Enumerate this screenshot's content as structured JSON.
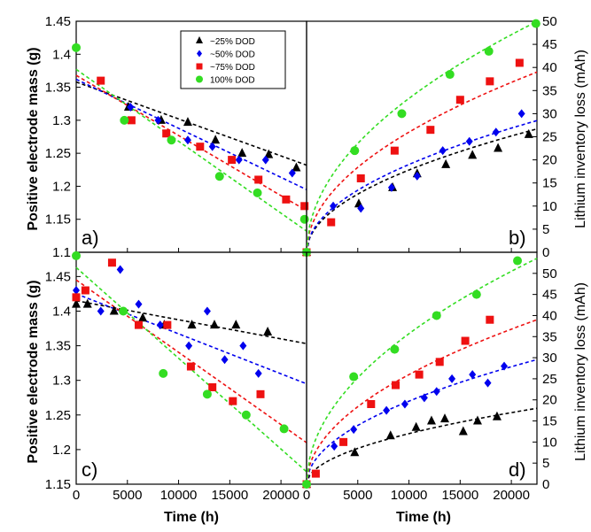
{
  "figure": {
    "left_ylabel": "Positive electrode mass (g)",
    "right_ylabel": "Lithium inventory loss (mAh)",
    "xlabel": "Time (h)"
  },
  "legend": [
    {
      "key": "s25",
      "label": "~25% DOD",
      "marker": "triangle",
      "color": "#000000"
    },
    {
      "key": "s50",
      "label": "~50% DOD",
      "marker": "diamond",
      "color": "#0000ee"
    },
    {
      "key": "s75",
      "label": "~75% DOD",
      "marker": "square",
      "color": "#ee1111"
    },
    {
      "key": "s100",
      "label": "100% DOD",
      "marker": "circle",
      "color": "#33dd22"
    }
  ],
  "chart_data": [
    {
      "panel": "a)",
      "type": "scatter",
      "xlim": [
        0,
        22500
      ],
      "ylim": [
        1.1,
        1.45
      ],
      "xticks": [
        0,
        5000,
        10000,
        15000,
        20000
      ],
      "yticks": [
        1.1,
        1.15,
        1.2,
        1.25,
        1.3,
        1.35,
        1.4,
        1.45
      ],
      "ytick_labels": [
        "1.1",
        "1.15",
        "1.2",
        "1.25",
        "1.3",
        "1.35",
        "1.4",
        "1.45"
      ],
      "series": [
        {
          "key": "s25",
          "x": [
            5100,
            8300,
            10900,
            13600,
            16200,
            18800,
            21500
          ],
          "y": [
            1.32,
            1.3,
            1.297,
            1.27,
            1.25,
            1.248,
            1.228
          ]
        },
        {
          "key": "s50",
          "x": [
            5300,
            8000,
            10900,
            13300,
            15900,
            18500,
            21100
          ],
          "y": [
            1.32,
            1.3,
            1.27,
            1.26,
            1.24,
            1.24,
            1.22
          ]
        },
        {
          "key": "s75",
          "x": [
            2400,
            5400,
            8800,
            12100,
            15200,
            17800,
            20500,
            22300
          ],
          "y": [
            1.36,
            1.3,
            1.28,
            1.26,
            1.24,
            1.21,
            1.18,
            1.17
          ]
        },
        {
          "key": "s100",
          "x": [
            0,
            4700,
            9300,
            14000,
            17700,
            22300
          ],
          "y": [
            1.41,
            1.3,
            1.27,
            1.215,
            1.19,
            1.15
          ]
        }
      ],
      "fits": [
        {
          "key": "s25",
          "x": [
            0,
            22500
          ],
          "y": [
            1.358,
            1.232
          ]
        },
        {
          "key": "s50",
          "x": [
            0,
            22500
          ],
          "y": [
            1.362,
            1.195
          ]
        },
        {
          "key": "s75",
          "x": [
            0,
            22500
          ],
          "y": [
            1.368,
            1.163
          ]
        },
        {
          "key": "s100",
          "x": [
            0,
            22500
          ],
          "y": [
            1.377,
            1.132
          ]
        }
      ]
    },
    {
      "panel": "b)",
      "type": "scatter",
      "xlim": [
        0,
        22500
      ],
      "ylim": [
        0,
        50
      ],
      "xticks": [
        0,
        5000,
        10000,
        15000,
        20000
      ],
      "yticks": [
        0,
        5,
        10,
        15,
        20,
        25,
        30,
        35,
        40,
        45,
        50
      ],
      "ytick_labels": [
        "0",
        "5",
        "10",
        "15",
        "20",
        "25",
        "30",
        "35",
        "40",
        "45",
        "50"
      ],
      "series": [
        {
          "key": "s25",
          "x": [
            0,
            5100,
            8400,
            10800,
            13600,
            16200,
            18700,
            21700
          ],
          "y": [
            0,
            10.5,
            14,
            17,
            19,
            21,
            22.5,
            25.5
          ]
        },
        {
          "key": "s50",
          "x": [
            0,
            2600,
            5300,
            8300,
            10800,
            13300,
            15900,
            18500,
            21000
          ],
          "y": [
            0,
            10,
            9.5,
            14,
            16.5,
            22,
            24,
            26,
            30
          ]
        },
        {
          "key": "s75",
          "x": [
            0,
            2400,
            5300,
            8600,
            12100,
            15000,
            17900,
            20800
          ],
          "y": [
            0,
            6.5,
            16,
            22,
            26.5,
            33,
            37,
            41
          ]
        },
        {
          "key": "s100",
          "x": [
            0,
            4700,
            9300,
            14000,
            17800,
            22400
          ],
          "y": [
            0,
            22,
            30,
            38.5,
            43.5,
            49.5
          ]
        }
      ],
      "fits": [
        {
          "key": "s25",
          "k": 0.178
        },
        {
          "key": "s50",
          "k": 0.19
        },
        {
          "key": "s75",
          "k": 0.26
        },
        {
          "key": "s100",
          "k": 0.333
        }
      ]
    },
    {
      "panel": "c)",
      "type": "scatter",
      "xlim": [
        0,
        22500
      ],
      "ylim": [
        1.15,
        1.485
      ],
      "xticks": [
        0,
        5000,
        10000,
        15000,
        20000
      ],
      "yticks": [
        1.15,
        1.2,
        1.25,
        1.3,
        1.35,
        1.4,
        1.45
      ],
      "ytick_labels": [
        "1.15",
        "1.2",
        "1.25",
        "1.3",
        "1.35",
        "1.4",
        "1.45"
      ],
      "series": [
        {
          "key": "s25",
          "x": [
            0,
            1100,
            3700,
            6500,
            8600,
            11300,
            13500,
            15600,
            18700
          ],
          "y": [
            1.41,
            1.41,
            1.4,
            1.39,
            1.38,
            1.38,
            1.38,
            1.38,
            1.37
          ]
        },
        {
          "key": "s50",
          "x": [
            0,
            2400,
            4300,
            6100,
            8200,
            11000,
            12800,
            14500,
            16300,
            17800
          ],
          "y": [
            1.43,
            1.4,
            1.46,
            1.41,
            1.38,
            1.35,
            1.4,
            1.33,
            1.35,
            1.31
          ]
        },
        {
          "key": "s75",
          "x": [
            0,
            900,
            3500,
            6100,
            8900,
            11200,
            13300,
            15300,
            18000
          ],
          "y": [
            1.42,
            1.43,
            1.47,
            1.38,
            1.38,
            1.32,
            1.29,
            1.27,
            1.28
          ]
        },
        {
          "key": "s100",
          "x": [
            0,
            4600,
            8500,
            12800,
            16600,
            20300
          ],
          "y": [
            1.48,
            1.4,
            1.31,
            1.28,
            1.25,
            1.23
          ]
        }
      ],
      "fits": [
        {
          "key": "s25",
          "x": [
            0,
            22500
          ],
          "y": [
            1.415,
            1.353
          ]
        },
        {
          "key": "s50",
          "x": [
            0,
            22500
          ],
          "y": [
            1.425,
            1.295
          ]
        },
        {
          "key": "s75",
          "x": [
            0,
            22500
          ],
          "y": [
            1.445,
            1.21
          ]
        },
        {
          "key": "s100",
          "x": [
            0,
            22500
          ],
          "y": [
            1.463,
            1.168
          ]
        }
      ]
    },
    {
      "panel": "d)",
      "type": "scatter",
      "xlim": [
        0,
        22500
      ],
      "ylim": [
        0,
        55
      ],
      "xticks": [
        0,
        5000,
        10000,
        15000,
        20000
      ],
      "yticks": [
        0,
        5,
        10,
        15,
        20,
        25,
        30,
        35,
        40,
        45,
        50
      ],
      "ytick_labels": [
        "0",
        "5",
        "10",
        "15",
        "20",
        "25",
        "30",
        "35",
        "40",
        "45",
        "50"
      ],
      "series": [
        {
          "key": "s25",
          "x": [
            0,
            4700,
            8200,
            10700,
            12200,
            13500,
            15300,
            16700,
            18600
          ],
          "y": [
            0,
            7.5,
            11.5,
            13.5,
            15,
            15.5,
            12.5,
            15,
            16
          ]
        },
        {
          "key": "s50",
          "x": [
            0,
            2700,
            4600,
            7800,
            9600,
            11500,
            12700,
            14200,
            16200,
            17700,
            19300
          ],
          "y": [
            0,
            9,
            13,
            17.5,
            19,
            20.5,
            22,
            25,
            26,
            24,
            28
          ]
        },
        {
          "key": "s75",
          "x": [
            0,
            900,
            3600,
            6300,
            8700,
            11000,
            13000,
            15500,
            17900
          ],
          "y": [
            0,
            2.5,
            10,
            19,
            23.5,
            26,
            29,
            34,
            39
          ]
        },
        {
          "key": "s100",
          "x": [
            0,
            4600,
            8600,
            12700,
            16600,
            20600
          ],
          "y": [
            0,
            25.5,
            32,
            40,
            45,
            53
          ]
        }
      ],
      "fits": [
        {
          "key": "s25",
          "k": 0.12
        },
        {
          "key": "s50",
          "k": 0.197
        },
        {
          "key": "s75",
          "k": 0.26
        },
        {
          "key": "s100",
          "k": 0.357
        }
      ]
    }
  ]
}
